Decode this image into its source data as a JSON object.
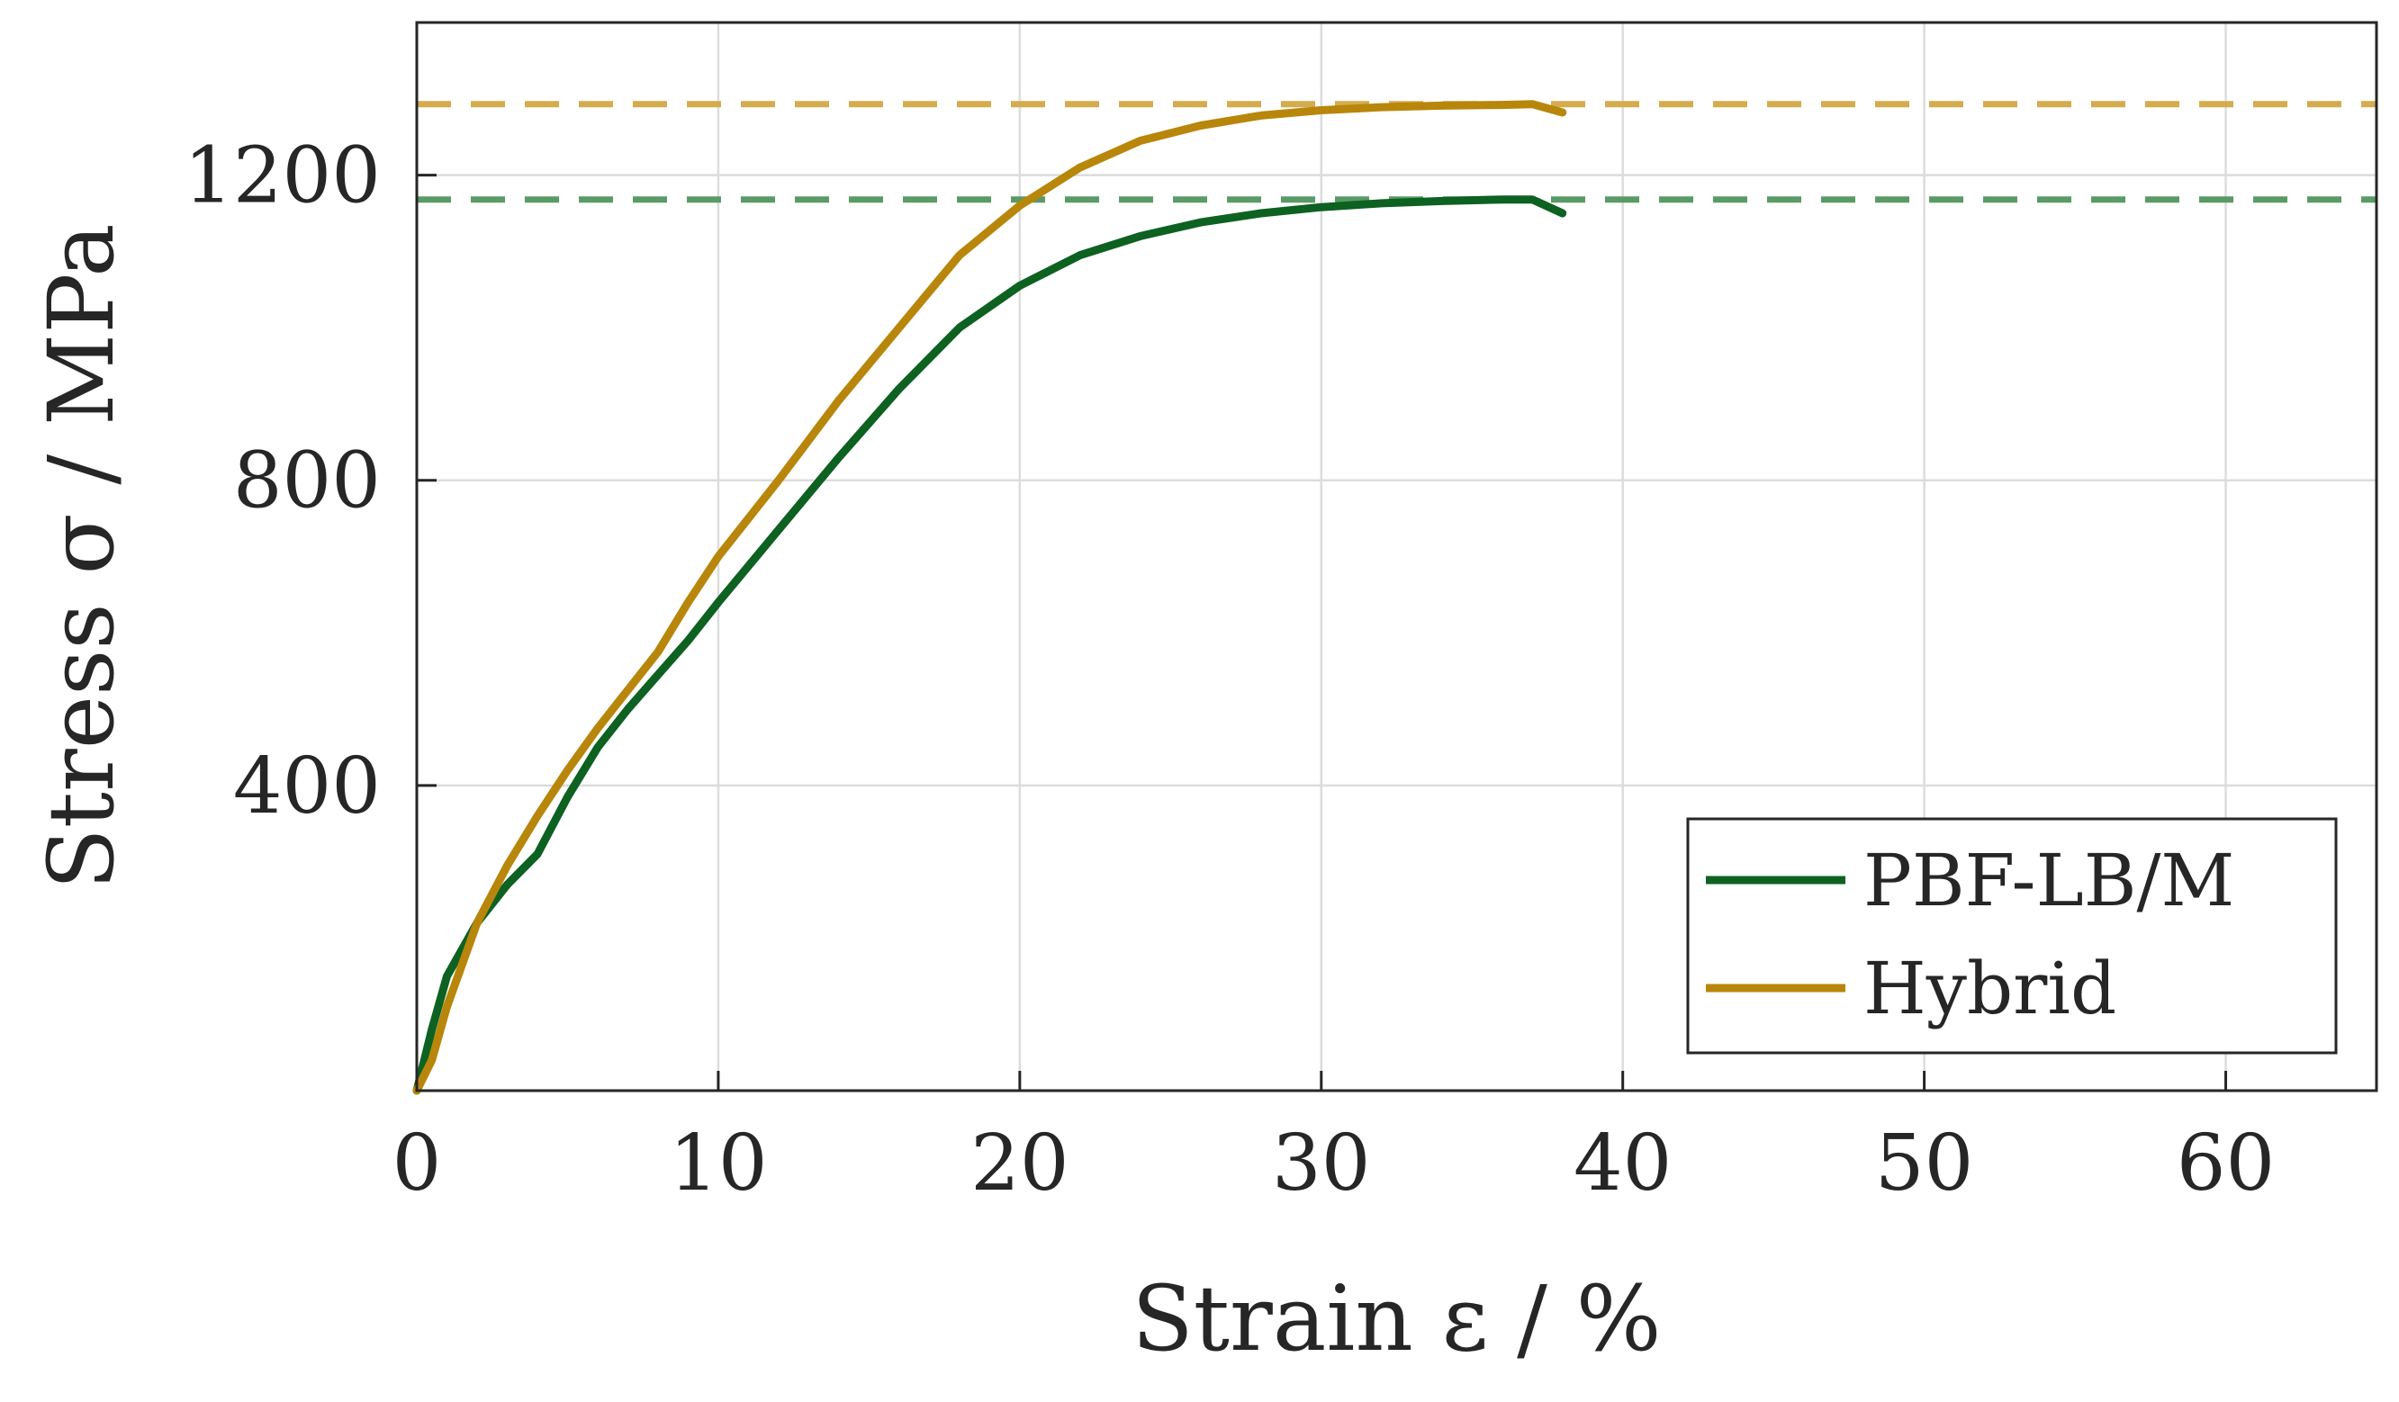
{
  "chart_data": {
    "type": "line",
    "x": [
      0,
      0.5,
      1,
      2,
      3,
      4,
      5,
      6,
      7,
      8,
      9,
      10,
      12,
      14,
      16,
      18,
      20,
      22,
      24,
      26,
      28,
      30,
      32,
      34,
      36,
      37,
      38
    ],
    "series": [
      {
        "name": "PBF-LB/M",
        "color": "#0d6121",
        "values": [
          0,
          80,
          150,
          220,
          270,
          310,
          385,
          450,
          500,
          545,
          590,
          640,
          735,
          830,
          920,
          1000,
          1055,
          1095,
          1120,
          1138,
          1150,
          1158,
          1163,
          1166,
          1168,
          1168,
          1150
        ]
      },
      {
        "name": "Hybrid",
        "color": "#b8860b",
        "values": [
          0,
          40,
          110,
          220,
          295,
          360,
          420,
          475,
          525,
          575,
          640,
          700,
          800,
          905,
          1000,
          1095,
          1160,
          1210,
          1245,
          1265,
          1278,
          1285,
          1289,
          1291,
          1292,
          1293,
          1282
        ]
      }
    ],
    "reference_lines": [
      {
        "series": "Hybrid",
        "y": 1293,
        "style": "dashed",
        "color": "#d4ac4d"
      },
      {
        "series": "PBF-LB/M",
        "y": 1168,
        "style": "dashed",
        "color": "#5a9a66"
      }
    ],
    "title": "",
    "xlabel": "Strain ε / %",
    "ylabel": "Stress σ / MPa",
    "xlim": [
      0,
      65
    ],
    "ylim": [
      0,
      1400
    ],
    "xticks": [
      0,
      10,
      20,
      30,
      40,
      50,
      60
    ],
    "yticks": [
      400,
      800,
      1200
    ],
    "grid": true,
    "legend_position": "bottom-right"
  },
  "labels": {
    "x_ticks": [
      "0",
      "10",
      "20",
      "30",
      "40",
      "50",
      "60"
    ],
    "y_ticks": [
      "400",
      "800",
      "1200"
    ],
    "x_title": "Strain ε / %",
    "y_title": "Stress σ / MPa",
    "legend": [
      "PBF-LB/M",
      "Hybrid"
    ]
  }
}
